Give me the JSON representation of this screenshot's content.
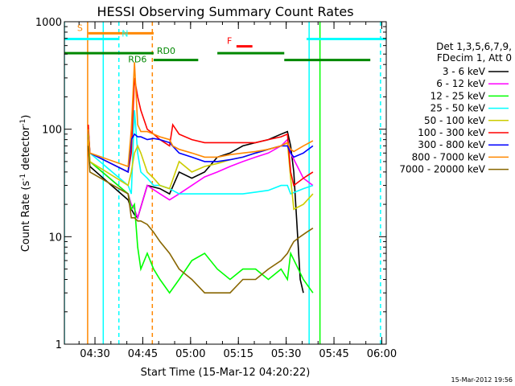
{
  "chart_data": {
    "type": "line",
    "title": "HESSI Observing Summary Count Rates",
    "xlabel": "Start Time (15-Mar-12 04:20:22)",
    "ylabel_main": "Count Rate (s",
    "ylabel_sup1": "-1",
    "ylabel_mid": " detector",
    "ylabel_sup2": "-1",
    "ylabel_end": ")",
    "footer_date": "15-Mar-2012 19:56",
    "yscale": "log",
    "ylim": [
      1,
      1000
    ],
    "xlim_minutes": [
      0,
      101
    ],
    "x_unit": "minutes after 04:20:22",
    "yticks": [
      {
        "value": 1,
        "label": "1"
      },
      {
        "value": 10,
        "label": "10"
      },
      {
        "value": 100,
        "label": "100"
      },
      {
        "value": 1000,
        "label": "1000"
      }
    ],
    "xticks": [
      {
        "value": 9.6,
        "label": "04:30"
      },
      {
        "value": 24.6,
        "label": "04:45"
      },
      {
        "value": 39.6,
        "label": "05:00"
      },
      {
        "value": 54.6,
        "label": "05:15"
      },
      {
        "value": 69.6,
        "label": "05:30"
      },
      {
        "value": 84.6,
        "label": "05:45"
      },
      {
        "value": 99.6,
        "label": "06:00"
      }
    ],
    "legend_header": [
      "Det 1,3,5,6,7,9,",
      "FDecim 1, Att 0"
    ],
    "series": [
      {
        "name": "3 - 6 keV",
        "color": "#000000",
        "x": [
          7.5,
          8,
          20,
          21,
          22,
          23,
          26,
          30,
          33,
          36,
          40,
          44,
          48,
          52,
          56,
          60,
          64,
          68,
          70,
          71,
          72,
          74,
          75
        ],
        "y": [
          70,
          45,
          22,
          18,
          16,
          15,
          30,
          28,
          25,
          40,
          35,
          40,
          55,
          60,
          70,
          75,
          80,
          90,
          95,
          70,
          40,
          4,
          3
        ]
      },
      {
        "name": "6 - 12 keV",
        "color": "#ff00ff",
        "x": [
          7.5,
          8,
          20,
          21,
          22,
          23,
          26,
          30,
          33,
          36,
          40,
          44,
          48,
          52,
          56,
          60,
          64,
          68,
          70,
          71,
          75,
          78
        ],
        "y": [
          90,
          50,
          25,
          20,
          18,
          15,
          30,
          25,
          22,
          25,
          30,
          36,
          40,
          45,
          50,
          55,
          60,
          70,
          80,
          60,
          35,
          30
        ]
      },
      {
        "name": "12 - 25 keV",
        "color": "#00ff00",
        "x": [
          7.5,
          8,
          20,
          21,
          22,
          23,
          24,
          26,
          28,
          30,
          33,
          36,
          40,
          44,
          48,
          52,
          56,
          60,
          64,
          68,
          70,
          71,
          75,
          78
        ],
        "y": [
          90,
          50,
          25,
          18,
          20,
          8,
          5,
          7,
          5,
          4,
          3,
          4,
          6,
          7,
          5,
          4,
          5,
          5,
          4,
          5,
          4,
          7,
          4,
          3
        ]
      },
      {
        "name": "25 - 50 keV",
        "color": "#00ffff",
        "x": [
          7.5,
          8,
          20,
          21,
          22,
          23,
          24,
          26,
          28,
          30,
          33,
          36,
          40,
          44,
          48,
          52,
          56,
          60,
          64,
          68,
          70,
          71,
          75,
          78
        ],
        "y": [
          100,
          60,
          30,
          25,
          150,
          60,
          40,
          35,
          30,
          30,
          28,
          25,
          25,
          25,
          25,
          25,
          25,
          26,
          27,
          30,
          30,
          25,
          28,
          30
        ]
      },
      {
        "name": "50 - 100 keV",
        "color": "#cccc00",
        "x": [
          7.5,
          8,
          20,
          21,
          22,
          23,
          24,
          26,
          28,
          30,
          33,
          36,
          40,
          44,
          48,
          52,
          56,
          60,
          64,
          68,
          70,
          71,
          72,
          75,
          78
        ],
        "y": [
          80,
          50,
          30,
          40,
          60,
          70,
          60,
          40,
          35,
          30,
          28,
          50,
          40,
          45,
          48,
          52,
          55,
          60,
          65,
          70,
          75,
          35,
          18,
          20,
          25
        ]
      },
      {
        "name": "100 - 300 keV",
        "color": "#ff0000",
        "x": [
          7.5,
          8,
          20,
          21,
          22,
          23,
          24,
          26,
          28,
          30,
          33,
          34,
          36,
          40,
          44,
          48,
          52,
          56,
          60,
          64,
          68,
          70,
          71,
          72,
          75,
          78
        ],
        "y": [
          110,
          60,
          40,
          60,
          300,
          200,
          150,
          100,
          90,
          80,
          70,
          110,
          90,
          80,
          75,
          75,
          75,
          75,
          75,
          80,
          85,
          90,
          40,
          30,
          35,
          40
        ]
      },
      {
        "name": "300 - 800 keV",
        "color": "#0000ff",
        "x": [
          7.5,
          8,
          20,
          21,
          22,
          23,
          24,
          26,
          28,
          30,
          33,
          36,
          40,
          44,
          48,
          52,
          56,
          60,
          64,
          68,
          70,
          71,
          72,
          75,
          78
        ],
        "y": [
          100,
          60,
          40,
          80,
          90,
          85,
          85,
          80,
          82,
          80,
          75,
          60,
          55,
          50,
          50,
          52,
          55,
          60,
          65,
          70,
          70,
          60,
          55,
          60,
          70
        ]
      },
      {
        "name": "800 - 7000 keV",
        "color": "#ff8800",
        "x": [
          7.5,
          8,
          20,
          21,
          22,
          23,
          24,
          26,
          28,
          30,
          33,
          34,
          36,
          40,
          44,
          48,
          52,
          56,
          60,
          64,
          68,
          70,
          71,
          72,
          75,
          78
        ],
        "y": [
          100,
          60,
          45,
          100,
          420,
          110,
          95,
          95,
          90,
          85,
          80,
          70,
          65,
          60,
          55,
          55,
          58,
          60,
          62,
          65,
          70,
          75,
          65,
          62,
          70,
          78
        ]
      },
      {
        "name": "7000 - 20000 keV",
        "color": "#886600",
        "x": [
          7.5,
          8,
          20,
          21,
          22,
          23,
          24,
          26,
          28,
          30,
          33,
          36,
          40,
          44,
          48,
          52,
          56,
          60,
          64,
          68,
          70,
          71,
          72,
          74,
          76,
          78
        ],
        "y": [
          70,
          40,
          25,
          15,
          15,
          14,
          14,
          13,
          11,
          9,
          7,
          5,
          4,
          3,
          3,
          3,
          4,
          4,
          5,
          6,
          7,
          8,
          9,
          10,
          11,
          12
        ]
      }
    ],
    "attenuator_bars": [
      {
        "label": "S",
        "color": "#ff8800",
        "x_start": 7.5,
        "x_end": 28,
        "y": 780,
        "label_x": 4
      },
      {
        "label": "N",
        "color": "#00ffff",
        "x_start": 0,
        "x_end": 17,
        "y": 690,
        "label_x": 18
      },
      {
        "label": "F",
        "color": "#ff0000",
        "x_start": 54,
        "x_end": 59,
        "y": 590,
        "label_x": 51
      },
      {
        "label": "",
        "color": "#00ffff",
        "x_start": 76,
        "x_end": 101,
        "y": 690,
        "label_x": 0
      }
    ],
    "decimation_bars": [
      {
        "color": "#008800",
        "segments": [
          [
            0,
            28
          ],
          [
            48,
            69
          ]
        ],
        "y": 510
      },
      {
        "color": "#008800",
        "segments": [
          [
            28,
            42
          ],
          [
            69,
            96
          ]
        ],
        "y": 440
      }
    ],
    "decimation_labels": [
      {
        "text": "RD0",
        "x": 29,
        "y": 500
      },
      {
        "text": "RD6",
        "x": 20,
        "y": 420
      }
    ],
    "vertical_lines": [
      {
        "x": 7.3,
        "color": "#ff8800",
        "dashed": false
      },
      {
        "x": 12.2,
        "color": "#00ffff",
        "dashed": false
      },
      {
        "x": 17.1,
        "color": "#00ffff",
        "dashed": true
      },
      {
        "x": 27.6,
        "color": "#ff8800",
        "dashed": true
      },
      {
        "x": 76.8,
        "color": "#00ffff",
        "dashed": false
      },
      {
        "x": 80.2,
        "color": "#00ff00",
        "dashed": false
      },
      {
        "x": 99.2,
        "color": "#00ffff",
        "dashed": true
      },
      {
        "x": 0.0,
        "color": "#00ffff",
        "dashed": false
      }
    ]
  }
}
